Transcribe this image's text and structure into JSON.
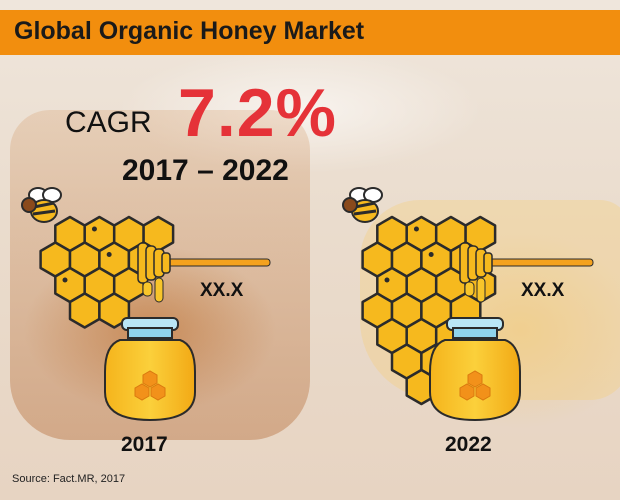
{
  "title": "Global Organic Honey Market",
  "cagr": {
    "label": "CAGR",
    "value": "7.2%",
    "period": "2017 – 2022"
  },
  "left_panel": {
    "value": "XX.X",
    "year": "2017"
  },
  "right_panel": {
    "value": "XX.X",
    "year": "2022"
  },
  "source": "Source: Fact.MR, 2017",
  "colors": {
    "title_bar": "#f28e0e",
    "cagr_value": "#e53238",
    "comb_fill": "#f6b91e",
    "comb_stroke": "#2b2b2b",
    "jar_fill": "#f8c52a",
    "jar_lid": "#8fd3ec"
  },
  "icons": [
    "bee-icon",
    "honeycomb-icon",
    "honey-dipper-icon",
    "honey-jar-icon"
  ]
}
